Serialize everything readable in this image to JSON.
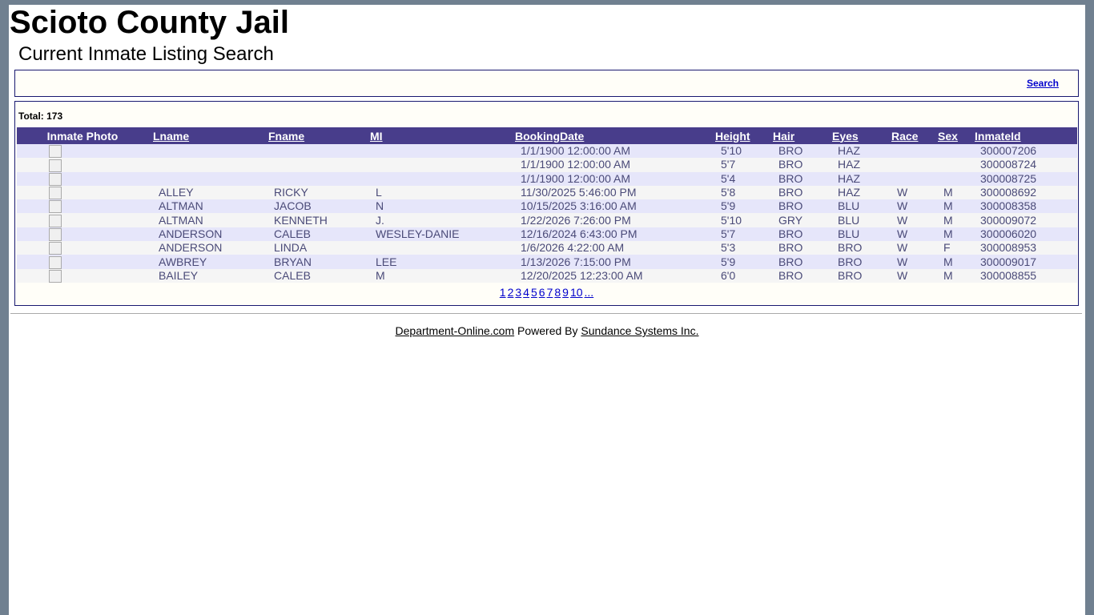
{
  "header": {
    "title": "Scioto County Jail",
    "subtitle": "Current Inmate Listing Search"
  },
  "search_link": "Search",
  "total": {
    "label": "Total:",
    "value": 173
  },
  "table": {
    "columns": [
      "Inmate Photo",
      "Lname",
      "Fname",
      "MI",
      "BookingDate",
      "Height",
      "Hair",
      "Eyes",
      "Race",
      "Sex",
      "InmateId"
    ],
    "rows": [
      [
        null,
        null,
        null,
        "1/1/1900 12:00:00 AM",
        "5'10",
        "BRO",
        "HAZ",
        null,
        null,
        "300007206"
      ],
      [
        null,
        null,
        null,
        "1/1/1900 12:00:00 AM",
        "5'7",
        "BRO",
        "HAZ",
        null,
        null,
        "300008724"
      ],
      [
        null,
        null,
        null,
        "1/1/1900 12:00:00 AM",
        "5'4",
        "BRO",
        "HAZ",
        null,
        null,
        "300008725"
      ],
      [
        "ALLEY",
        "RICKY",
        "L",
        "11/30/2025 5:46:00 PM",
        "5'8",
        "BRO",
        "HAZ",
        "W",
        "M",
        "300008692"
      ],
      [
        "ALTMAN",
        "JACOB",
        "N",
        "10/15/2025 3:16:00 AM",
        "5'9",
        "BRO",
        "BLU",
        "W",
        "M",
        "300008358"
      ],
      [
        "ALTMAN",
        "KENNETH",
        "J.",
        "1/22/2026 7:26:00 PM",
        "5'10",
        "GRY",
        "BLU",
        "W",
        "M",
        "300009072"
      ],
      [
        "ANDERSON",
        "CALEB",
        "WESLEY-DANIE",
        "12/16/2024 6:43:00 PM",
        "5'7",
        "BRO",
        "BLU",
        "W",
        "M",
        "300006020"
      ],
      [
        "ANDERSON",
        "LINDA",
        null,
        "1/6/2026 4:22:00 AM",
        "5'3",
        "BRO",
        "BRO",
        "W",
        "F",
        "300008953"
      ],
      [
        "AWBREY",
        "BRYAN",
        "LEE",
        "1/13/2026 7:15:00 PM",
        "5'9",
        "BRO",
        "BRO",
        "W",
        "M",
        "300009017"
      ],
      [
        "BAILEY",
        "CALEB",
        "M",
        "12/20/2025 12:23:00 AM",
        "6'0",
        "BRO",
        "BRO",
        "W",
        "M",
        "300008855"
      ]
    ]
  },
  "pagination": [
    "1",
    "2",
    "3",
    "4",
    "5",
    "6",
    "7",
    "8",
    "9",
    "10",
    "..."
  ],
  "footer": {
    "link1": "Department-Online.com",
    "text": "Powered By",
    "link2": "Sundance Systems Inc."
  }
}
